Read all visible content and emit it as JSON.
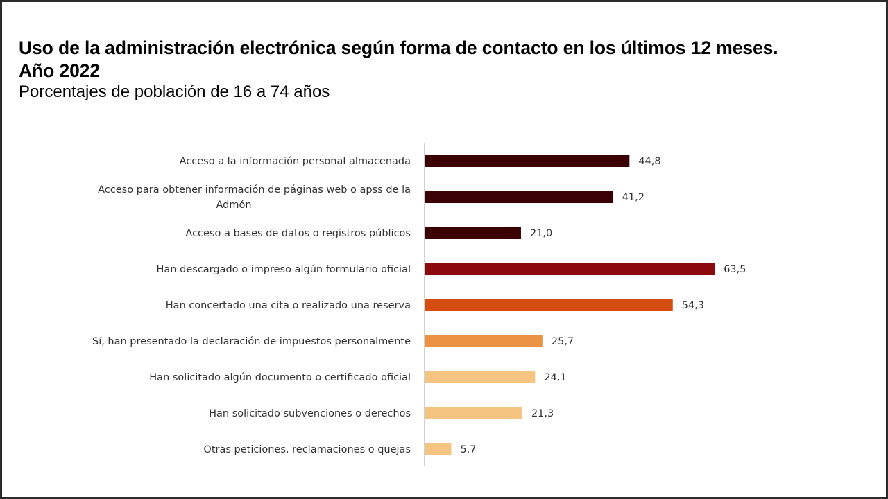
{
  "header": {
    "title_line1": "Uso de la administración electrónica según forma de contacto en los últimos 12 meses.",
    "title_line2": "Año 2022",
    "subtitle": "Porcentajes de población de 16 a 74 años"
  },
  "chart_data": {
    "type": "bar",
    "orientation": "horizontal",
    "title": "Uso de la administración electrónica según forma de contacto en los últimos 12 meses. Año 2022",
    "subtitle": "Porcentajes de población de 16 a 74 años",
    "xlabel": "",
    "ylabel": "",
    "xlim": [
      0,
      70
    ],
    "grid": false,
    "legend": "none",
    "categories": [
      [
        "Acceso a la información personal almacenada"
      ],
      [
        "Acceso para obtener información de páginas web o apss de la",
        "Admón"
      ],
      [
        "Acceso a bases de datos o registros públicos"
      ],
      [
        "Han descargado o impreso algún formulario oficial"
      ],
      [
        "Han concertado una cita o realizado una reserva"
      ],
      [
        "Sí, han presentado la declaración de impuestos personalmente"
      ],
      [
        "Han solicitado algún documento o certificado oficial"
      ],
      [
        "Han solicitado subvenciones o derechos"
      ],
      [
        "Otras peticiones, reclamaciones o quejas"
      ]
    ],
    "values": [
      44.8,
      41.2,
      21.0,
      63.5,
      54.3,
      25.7,
      24.1,
      21.3,
      5.7
    ],
    "value_labels": [
      "44,8",
      "41,2",
      "21,0",
      "63,5",
      "54,3",
      "25,7",
      "24,1",
      "21,3",
      "5,7"
    ],
    "colors": [
      "#3a0004",
      "#3a0004",
      "#3a0004",
      "#8a0a0d",
      "#d54d10",
      "#ec9244",
      "#f5c480",
      "#f5c480",
      "#f5c480"
    ],
    "axis_color": "#d0d0d0"
  }
}
